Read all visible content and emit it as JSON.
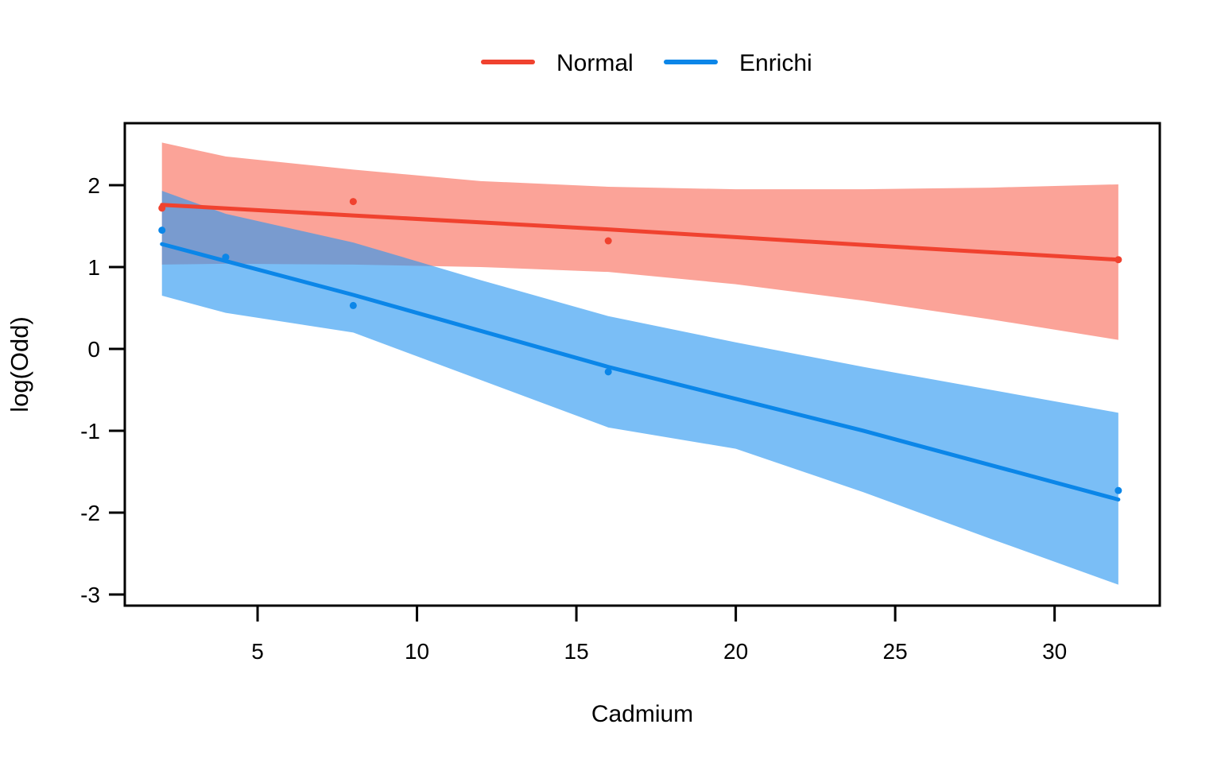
{
  "chart_data": {
    "type": "line",
    "title": "",
    "xlabel": "Cadmium",
    "ylabel": "log(Odd)",
    "x_ticks": [
      5,
      10,
      15,
      20,
      25,
      30
    ],
    "y_ticks": [
      2,
      1,
      0,
      -1,
      -2,
      -3
    ],
    "xlim": [
      0.835,
      33.3
    ],
    "ylim": [
      -3.136,
      2.757
    ],
    "grid": false,
    "legend": {
      "position": "top-center",
      "entries": [
        "Normal",
        "Enrichi"
      ]
    },
    "series": [
      {
        "name": "Normal",
        "color": "#F0422F",
        "band_fill": "rgba(248,96,78,0.58)",
        "line": {
          "x": [
            2,
            8,
            16,
            24,
            32
          ],
          "y": [
            1.76,
            1.63,
            1.46,
            1.27,
            1.09
          ]
        },
        "points": {
          "x": [
            2,
            8,
            16,
            32
          ],
          "y": [
            1.72,
            1.8,
            1.32,
            1.09
          ]
        },
        "band": {
          "x": [
            2,
            4,
            8,
            12,
            16,
            20,
            24,
            28,
            32
          ],
          "upper": [
            2.52,
            2.35,
            2.19,
            2.05,
            1.98,
            1.95,
            1.95,
            1.97,
            2.01
          ],
          "lower": [
            1.03,
            1.04,
            1.03,
            1.0,
            0.94,
            0.79,
            0.59,
            0.36,
            0.11
          ]
        }
      },
      {
        "name": "Enrichi",
        "color": "#0B86E8",
        "band_fill": "rgba(40,150,240,0.62)",
        "line": {
          "x": [
            2,
            8,
            16,
            24,
            32
          ],
          "y": [
            1.28,
            0.66,
            -0.22,
            -1.0,
            -1.84
          ]
        },
        "points": {
          "x": [
            2,
            4,
            8,
            16,
            32
          ],
          "y": [
            1.45,
            1.12,
            0.53,
            -0.28,
            -1.73
          ]
        },
        "band": {
          "x": [
            2,
            4,
            8,
            12,
            16,
            20,
            24,
            28,
            32
          ],
          "upper": [
            1.93,
            1.65,
            1.3,
            0.84,
            0.4,
            0.08,
            -0.22,
            -0.5,
            -0.78
          ],
          "lower": [
            0.65,
            0.44,
            0.2,
            -0.38,
            -0.96,
            -1.22,
            -1.75,
            -2.32,
            -2.88
          ]
        }
      }
    ],
    "axis_color": "#000000",
    "tick_font_size": 28,
    "label_font_size": 30
  }
}
